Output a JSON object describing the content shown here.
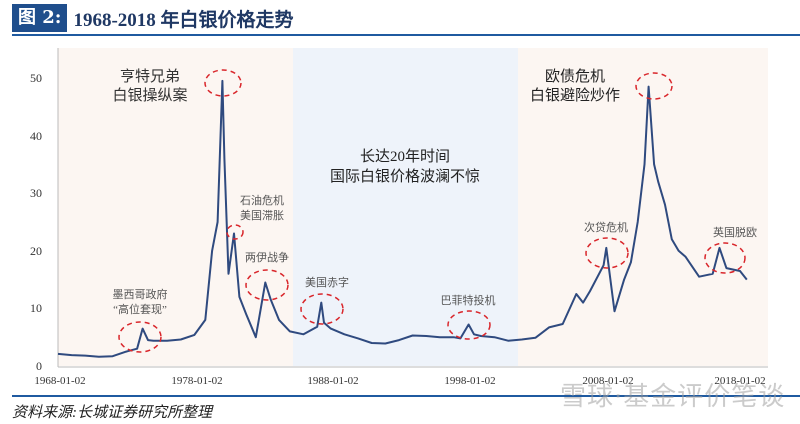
{
  "header": {
    "figure_label": "图 2:",
    "title": "1968-2018 年白银价格走势"
  },
  "footer": {
    "source": "资料来源:长城证券研究所整理",
    "watermark": "雪球·基金评价笔谈"
  },
  "colors": {
    "title_bg": "#1f4e8c",
    "title_text": "#1f3864",
    "rule": "#1f5aa0",
    "line": "#2f4a7f",
    "band_pink": "#fcf6f2",
    "band_blue": "#eef3fa",
    "annotation_circle": "#d9262b"
  },
  "chart_data": {
    "type": "line",
    "title": "1968-2018 年白银价格走势",
    "xlabel": "",
    "ylabel": "",
    "ylim": [
      0,
      55
    ],
    "yticks": [
      0,
      10,
      20,
      30,
      40,
      50
    ],
    "xticks": [
      "1968-01-02",
      "1978-01-02",
      "1988-01-02",
      "1998-01-02",
      "2008-01-02",
      "2018-01-02"
    ],
    "grid": false,
    "legend": "none",
    "series": [
      {
        "name": "白银价格",
        "x": [
          1968.0,
          1969.0,
          1970.0,
          1971.0,
          1972.0,
          1973.0,
          1973.8,
          1974.2,
          1974.6,
          1975.0,
          1976.0,
          1977.0,
          1978.0,
          1978.8,
          1979.3,
          1979.7,
          1980.05,
          1980.2,
          1980.5,
          1980.9,
          1981.3,
          1981.8,
          1982.5,
          1983.2,
          1983.6,
          1984.2,
          1985.0,
          1986.0,
          1987.0,
          1987.3,
          1987.5,
          1988.0,
          1989.0,
          1990.0,
          1991.0,
          1992.0,
          1993.0,
          1994.0,
          1995.0,
          1996.0,
          1997.0,
          1997.5,
          1998.1,
          1998.5,
          1999.0,
          2000.0,
          2001.0,
          2002.0,
          2003.0,
          2004.0,
          2005.0,
          2006.0,
          2006.5,
          2007.0,
          2008.0,
          2008.2,
          2008.8,
          2009.5,
          2010.0,
          2010.5,
          2011.0,
          2011.3,
          2011.7,
          2012.0,
          2012.5,
          2013.0,
          2013.5,
          2014.0,
          2015.0,
          2016.0,
          2016.5,
          2017.0,
          2018.0,
          2018.5
        ],
        "values": [
          2.1,
          1.9,
          1.8,
          1.6,
          1.7,
          2.5,
          3.0,
          6.5,
          4.5,
          4.4,
          4.4,
          4.6,
          5.4,
          8.0,
          20.0,
          25.0,
          49.5,
          36.0,
          16.0,
          23.0,
          12.0,
          9.0,
          5.0,
          14.5,
          11.5,
          8.0,
          6.0,
          5.5,
          6.8,
          11.0,
          7.5,
          6.5,
          5.5,
          4.8,
          4.0,
          3.9,
          4.5,
          5.3,
          5.2,
          5.0,
          5.0,
          4.8,
          7.2,
          5.5,
          5.2,
          5.0,
          4.4,
          4.6,
          4.9,
          6.7,
          7.3,
          12.5,
          11.0,
          13.0,
          17.5,
          20.5,
          9.5,
          15.0,
          18.0,
          25.0,
          35.0,
          48.5,
          35.0,
          32.0,
          28.0,
          22.0,
          20.0,
          19.0,
          15.5,
          16.0,
          20.5,
          17.0,
          16.5,
          15.0
        ]
      }
    ],
    "regions": [
      {
        "from": "1968-01-02",
        "to": "1986.5",
        "color": "#fcf6f2"
      },
      {
        "from": "1986.5",
        "to": "2002.5",
        "color": "#eef3fa"
      },
      {
        "from": "2002.5",
        "to": "2019.5",
        "color": "#fcf6f2"
      }
    ],
    "annotations": [
      {
        "text": "亨特兄弟\n白银操纵案",
        "target_year": 1980.05,
        "target_value": 49.5
      },
      {
        "text": "石油危机\n美国滞胀",
        "target_year": 1980.9,
        "target_value": 23.0
      },
      {
        "text": "墨西哥政府\n“高位套现”",
        "target_year": 1974.2,
        "target_value": 5.5
      },
      {
        "text": "两伊战争",
        "target_year": 1983.2,
        "target_value": 12.0
      },
      {
        "text": "美国赤字",
        "target_year": 1987.3,
        "target_value": 9.5
      },
      {
        "text": "长达20年时间\n国际白银价格波澜不惊",
        "target_year": null,
        "target_value": null
      },
      {
        "text": "巴菲特投机",
        "target_year": 1998.1,
        "target_value": 7.0
      },
      {
        "text": "次贷危机",
        "target_year": 2008.2,
        "target_value": 18.5
      },
      {
        "text": "欧债危机\n白银避险炒作",
        "target_year": 2011.3,
        "target_value": 48.5
      },
      {
        "text": "英国脱欧",
        "target_year": 2016.5,
        "target_value": 18.5
      }
    ]
  },
  "annotations_display": {
    "hunt_l1": "亨特兄弟",
    "hunt_l2": "白银操纵案",
    "oil_l1": "石油危机",
    "oil_l2": "美国滞胀",
    "mexico_l1": "墨西哥政府",
    "mexico_l2": "“高位套现”",
    "iran": "两伊战争",
    "deficit": "美国赤字",
    "calm_l1": "长达20年时间",
    "calm_l2": "国际白银价格波澜不惊",
    "buffett": "巴菲特投机",
    "subprime": "次贷危机",
    "euro_l1": "欧债危机",
    "euro_l2": "白银避险炒作",
    "brexit": "英国脱欧"
  },
  "axis_display": {
    "y": [
      "0",
      "10",
      "20",
      "30",
      "40",
      "50"
    ],
    "x": [
      "1968-01-02",
      "1978-01-02",
      "1988-01-02",
      "1998-01-02",
      "2008-01-02",
      "2018-01-02"
    ]
  }
}
